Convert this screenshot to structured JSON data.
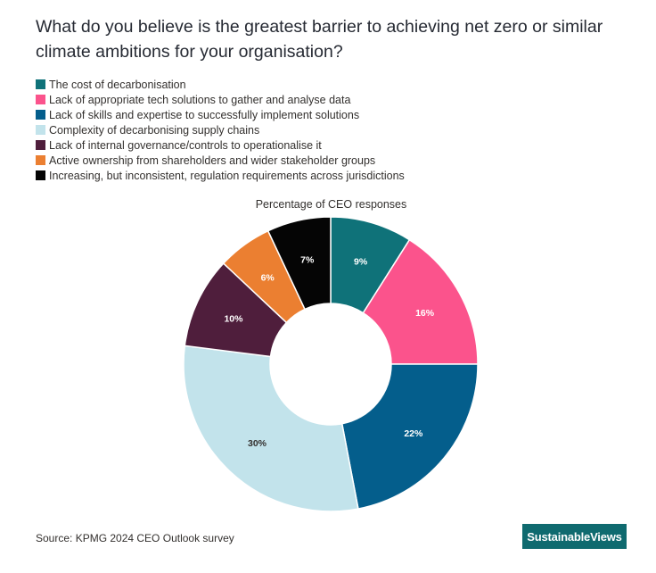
{
  "title": "What do you believe is the greatest barrier to achieving net zero or similar climate ambitions for your organisation?",
  "source": "Source: KPMG 2024 CEO Outlook survey",
  "brand": "SustainableViews",
  "chart_data": {
    "type": "pie",
    "subtitle": "Percentage of CEO responses",
    "donut": true,
    "legend_position": "top-left",
    "series": [
      {
        "name": "The cost of decarbonisation",
        "value": 9,
        "label": "9%",
        "color": "#0f7279"
      },
      {
        "name": "Lack of appropriate tech solutions to gather and analyse data",
        "value": 16,
        "label": "16%",
        "color": "#fb538c"
      },
      {
        "name": "Lack of skills and expertise to successfully implement solutions",
        "value": 22,
        "label": "22%",
        "color": "#045e8c"
      },
      {
        "name": "Complexity of decarbonising supply chains",
        "value": 30,
        "label": "30%",
        "color": "#c2e3eb"
      },
      {
        "name": "Lack of internal governance/controls to operationalise it",
        "value": 10,
        "label": "10%",
        "color": "#4f1e3c"
      },
      {
        "name": "Active ownership from shareholders and wider stakeholder groups",
        "value": 6,
        "label": "6%",
        "color": "#eb7f31"
      },
      {
        "name": "Increasing, but inconsistent, regulation requirements across jurisdictions",
        "value": 7,
        "label": "7%",
        "color": "#050505"
      }
    ]
  }
}
